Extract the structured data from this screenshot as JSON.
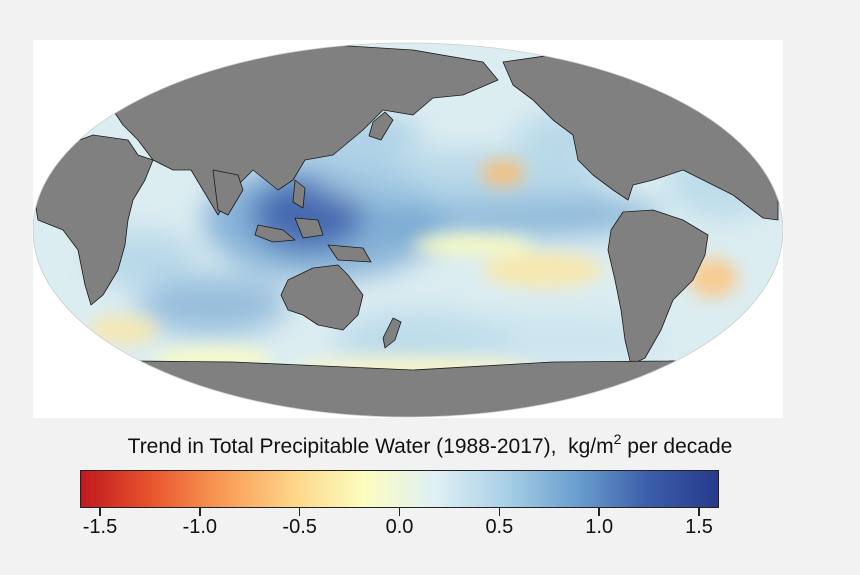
{
  "title": {
    "main": "Trend in Total Precipitable Water (1988-2017),",
    "units_prefix": "kg/m",
    "units_exponent": "2",
    "units_suffix": "per decade"
  },
  "colorbar": {
    "min": -1.6,
    "max": 1.6,
    "colors": [
      "#c0191f",
      "#e8552d",
      "#f99a56",
      "#fdd588",
      "#fcfdc0",
      "#dff0f4",
      "#a9d0e6",
      "#6a9fcf",
      "#3c5eaa",
      "#283a8c"
    ],
    "ticks": [
      {
        "value": -1.5,
        "label": "-1.5"
      },
      {
        "value": -1.0,
        "label": "-1.0"
      },
      {
        "value": -0.5,
        "label": "-0.5"
      },
      {
        "value": 0.0,
        "label": "0.0"
      },
      {
        "value": 0.5,
        "label": "0.5"
      },
      {
        "value": 1.0,
        "label": "1.0"
      },
      {
        "value": 1.5,
        "label": "1.5"
      }
    ]
  },
  "map": {
    "projection": "Mollweide (Pacific-centered)",
    "land_color": "#808080",
    "ocean_base_color": "#dcedf1"
  }
}
